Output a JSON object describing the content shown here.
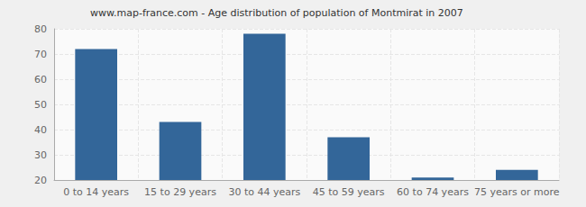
{
  "chart_data": {
    "type": "bar",
    "title": "www.map-france.com - Age distribution of population of Montmirat in 2007",
    "categories": [
      "0 to 14 years",
      "15 to 29 years",
      "30 to 44 years",
      "45 to 59 years",
      "60 to 74 years",
      "75 years or more"
    ],
    "values": [
      72,
      43,
      78,
      37,
      21,
      24
    ],
    "color": "#336699",
    "ylim": [
      20,
      80
    ],
    "yticks": [
      20,
      30,
      40,
      50,
      60,
      70,
      80
    ],
    "grid": true
  }
}
